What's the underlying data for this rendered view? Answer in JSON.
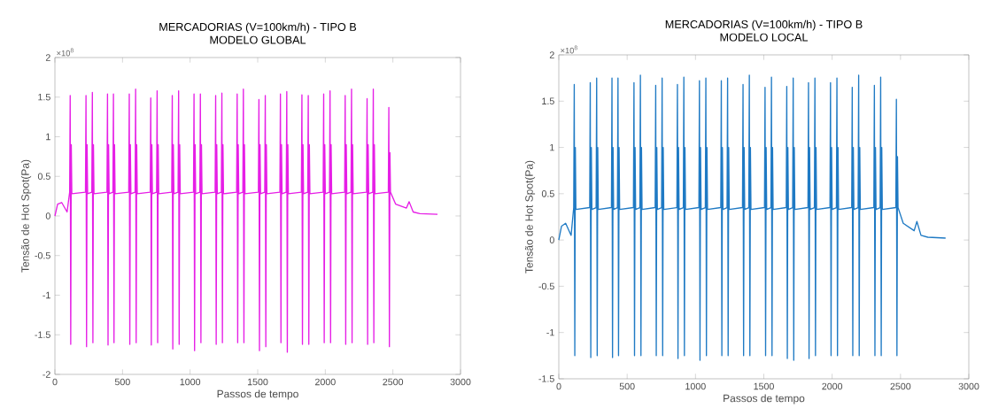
{
  "chart_data": [
    {
      "type": "line",
      "title": "MERCADORIAS (V=100km/h) - TIPO B",
      "subtitle": "MODELO GLOBAL",
      "xlabel": "Passos de tempo",
      "ylabel": "Tensão de Hot Spot(Pa)",
      "annotations": [
        "×10$^{8}$"
      ],
      "xlim": [
        0,
        3000
      ],
      "xticks": [
        0,
        500,
        1000,
        1500,
        2000,
        2500,
        3000
      ],
      "ylim": [
        -2,
        2
      ],
      "yticks": [
        -2,
        -1.5,
        -1,
        -0.5,
        0,
        0.5,
        1,
        1.5,
        2
      ],
      "series": [
        {
          "color": "#e61ee6",
          "x": [
            0,
            20,
            50,
            90,
            109,
            113,
            117,
            121,
            125,
            226,
            230,
            234,
            238,
            242,
            273,
            277,
            281,
            285,
            289,
            385,
            389,
            393,
            397,
            401,
            429,
            433,
            437,
            441,
            445,
            546,
            550,
            554,
            558,
            562,
            593,
            597,
            601,
            605,
            609,
            705,
            709,
            713,
            717,
            721,
            752,
            756,
            760,
            764,
            768,
            864,
            868,
            872,
            876,
            880,
            911,
            915,
            919,
            923,
            927,
            1025,
            1029,
            1033,
            1037,
            1041,
            1072,
            1076,
            1080,
            1084,
            1088,
            1185,
            1189,
            1193,
            1197,
            1201,
            1231,
            1235,
            1239,
            1243,
            1247,
            1344,
            1348,
            1352,
            1356,
            1360,
            1390,
            1394,
            1398,
            1402,
            1406,
            1505,
            1509,
            1513,
            1517,
            1521,
            1552,
            1556,
            1560,
            1564,
            1568,
            1664,
            1668,
            1672,
            1676,
            1680,
            1711,
            1715,
            1719,
            1723,
            1727,
            1823,
            1827,
            1831,
            1835,
            1839,
            1870,
            1874,
            1878,
            1882,
            1886,
            1984,
            1988,
            1992,
            1996,
            2000,
            2031,
            2035,
            2039,
            2043,
            2047,
            2143,
            2147,
            2151,
            2155,
            2159,
            2190,
            2194,
            2198,
            2202,
            2206,
            2305,
            2309,
            2313,
            2317,
            2321,
            2351,
            2355,
            2359,
            2363,
            2367,
            2466,
            2470,
            2474,
            2478,
            2482,
            2520,
            2600,
            2620,
            2650,
            2700,
            2830
          ],
          "values": [
            0,
            0.15,
            0.17,
            0.05,
            0.3,
            1.52,
            -1.62,
            0.9,
            0.28,
            0.3,
            1.52,
            -1.65,
            0.9,
            0.28,
            0.3,
            1.56,
            -1.6,
            0.9,
            0.28,
            0.3,
            1.54,
            -1.63,
            0.9,
            0.28,
            0.3,
            1.54,
            -1.6,
            0.9,
            0.28,
            0.3,
            1.54,
            -1.62,
            0.9,
            0.28,
            0.3,
            1.6,
            -1.6,
            0.9,
            0.28,
            0.3,
            1.49,
            -1.63,
            0.9,
            0.28,
            0.3,
            1.58,
            -1.6,
            0.9,
            0.28,
            0.3,
            1.52,
            -1.68,
            0.9,
            0.28,
            0.3,
            1.58,
            -1.62,
            0.9,
            0.28,
            0.3,
            1.54,
            -1.7,
            0.9,
            0.28,
            0.3,
            1.54,
            -1.6,
            0.9,
            0.28,
            0.3,
            1.52,
            -1.62,
            0.9,
            0.28,
            0.3,
            1.55,
            -1.6,
            0.9,
            0.28,
            0.3,
            1.54,
            -1.6,
            0.9,
            0.28,
            0.3,
            1.6,
            -1.6,
            0.9,
            0.28,
            0.3,
            1.47,
            -1.7,
            0.9,
            0.28,
            0.3,
            1.52,
            -1.65,
            0.9,
            0.28,
            0.3,
            1.54,
            -1.6,
            0.9,
            0.28,
            0.3,
            1.57,
            -1.72,
            0.9,
            0.28,
            0.3,
            1.53,
            -1.62,
            0.9,
            0.28,
            0.3,
            1.52,
            -1.62,
            0.9,
            0.28,
            0.3,
            1.54,
            -1.6,
            0.9,
            0.28,
            0.3,
            1.58,
            -1.6,
            0.9,
            0.28,
            0.3,
            1.52,
            -1.62,
            0.9,
            0.28,
            0.3,
            1.6,
            -1.6,
            0.9,
            0.28,
            0.3,
            1.48,
            -1.62,
            0.9,
            0.28,
            0.3,
            1.6,
            -1.6,
            0.9,
            0.28,
            0.3,
            1.37,
            -1.65,
            0.8,
            0.3,
            0.15,
            0.1,
            0.18,
            0.05,
            0.03,
            0.02
          ]
        }
      ]
    },
    {
      "type": "line",
      "title": "MERCADORIAS (V=100km/h) - TIPO B",
      "subtitle": "MODELO LOCAL",
      "xlabel": "Passos de tempo",
      "ylabel": "Tensão de Hot Spot(Pa)",
      "annotations": [
        "×10$^{8}$"
      ],
      "xlim": [
        0,
        3000
      ],
      "xticks": [
        0,
        500,
        1000,
        1500,
        2000,
        2500,
        3000
      ],
      "ylim": [
        -1.5,
        2
      ],
      "yticks": [
        -1.5,
        -1,
        -0.5,
        0,
        0.5,
        1,
        1.5,
        2
      ],
      "series": [
        {
          "color": "#1f7ac4",
          "x": [
            0,
            20,
            50,
            90,
            109,
            113,
            117,
            121,
            125,
            226,
            230,
            234,
            238,
            242,
            273,
            277,
            281,
            285,
            289,
            385,
            389,
            393,
            397,
            401,
            429,
            433,
            437,
            441,
            445,
            546,
            550,
            554,
            558,
            562,
            593,
            597,
            601,
            605,
            609,
            705,
            709,
            713,
            717,
            721,
            752,
            756,
            760,
            764,
            768,
            864,
            868,
            872,
            876,
            880,
            911,
            915,
            919,
            923,
            927,
            1025,
            1029,
            1033,
            1037,
            1041,
            1072,
            1076,
            1080,
            1084,
            1088,
            1185,
            1189,
            1193,
            1197,
            1201,
            1231,
            1235,
            1239,
            1243,
            1247,
            1344,
            1348,
            1352,
            1356,
            1360,
            1390,
            1394,
            1398,
            1402,
            1406,
            1505,
            1509,
            1513,
            1517,
            1521,
            1552,
            1556,
            1560,
            1564,
            1568,
            1664,
            1668,
            1672,
            1676,
            1680,
            1711,
            1715,
            1719,
            1723,
            1727,
            1823,
            1827,
            1831,
            1835,
            1839,
            1870,
            1874,
            1878,
            1882,
            1886,
            1984,
            1988,
            1992,
            1996,
            2000,
            2031,
            2035,
            2039,
            2043,
            2047,
            2143,
            2147,
            2151,
            2155,
            2159,
            2190,
            2194,
            2198,
            2202,
            2206,
            2305,
            2309,
            2313,
            2317,
            2321,
            2351,
            2355,
            2359,
            2363,
            2367,
            2466,
            2470,
            2474,
            2478,
            2482,
            2520,
            2600,
            2620,
            2650,
            2700,
            2830
          ],
          "values": [
            0,
            0.15,
            0.18,
            0.05,
            0.35,
            1.68,
            -1.25,
            1.0,
            0.33,
            0.35,
            1.7,
            -1.27,
            1.0,
            0.33,
            0.35,
            1.75,
            -1.25,
            1.0,
            0.33,
            0.35,
            1.75,
            -1.27,
            1.0,
            0.33,
            0.35,
            1.75,
            -1.25,
            1.0,
            0.33,
            0.35,
            1.7,
            -1.25,
            1.0,
            0.33,
            0.35,
            1.78,
            -1.25,
            1.0,
            0.33,
            0.35,
            1.67,
            -1.25,
            1.0,
            0.33,
            0.35,
            1.75,
            -1.25,
            1.0,
            0.33,
            0.35,
            1.68,
            -1.28,
            1.0,
            0.33,
            0.35,
            1.76,
            -1.25,
            1.0,
            0.33,
            0.35,
            1.72,
            -1.3,
            1.0,
            0.33,
            0.35,
            1.75,
            -1.25,
            1.0,
            0.33,
            0.35,
            1.72,
            -1.25,
            1.0,
            0.33,
            0.35,
            1.75,
            -1.25,
            1.0,
            0.33,
            0.35,
            1.68,
            -1.25,
            1.0,
            0.33,
            0.35,
            1.78,
            -1.25,
            1.0,
            0.33,
            0.35,
            1.65,
            -1.25,
            1.0,
            0.33,
            0.35,
            1.76,
            -1.25,
            1.0,
            0.33,
            0.35,
            1.66,
            -1.28,
            1.0,
            0.33,
            0.35,
            1.75,
            -1.3,
            1.0,
            0.33,
            0.35,
            1.7,
            -1.28,
            1.0,
            0.33,
            0.35,
            1.75,
            -1.25,
            1.0,
            0.33,
            0.35,
            1.7,
            -1.25,
            1.0,
            0.33,
            0.35,
            1.75,
            -1.25,
            1.0,
            0.33,
            0.35,
            1.65,
            -1.25,
            1.0,
            0.33,
            0.35,
            1.78,
            -1.25,
            1.0,
            0.33,
            0.35,
            1.67,
            -1.25,
            1.0,
            0.33,
            0.35,
            1.76,
            -1.25,
            1.0,
            0.33,
            0.35,
            1.52,
            -1.25,
            0.9,
            0.35,
            0.18,
            0.1,
            0.2,
            0.05,
            0.03,
            0.02
          ]
        }
      ]
    }
  ]
}
